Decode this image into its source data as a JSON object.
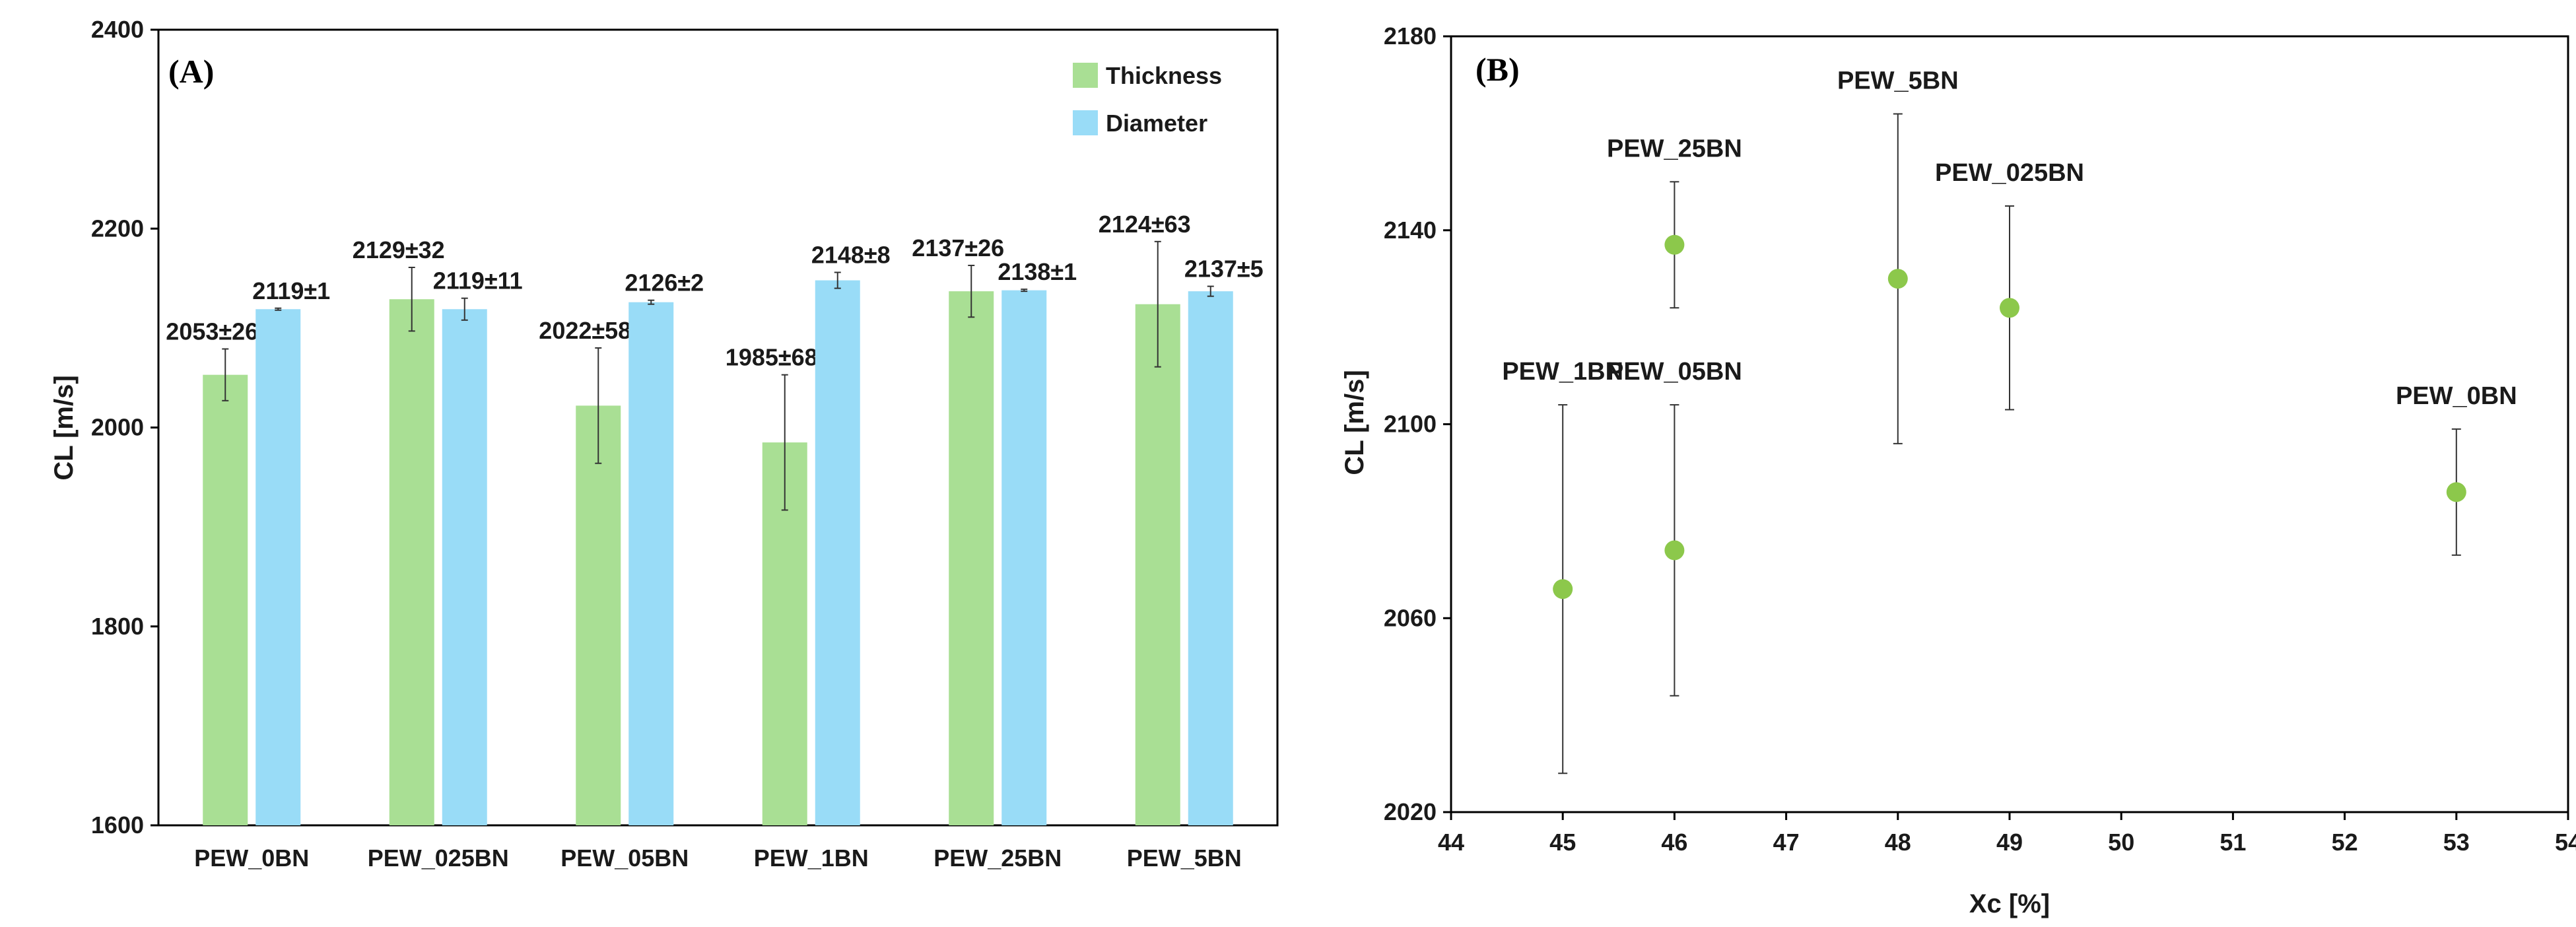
{
  "chart_data": [
    {
      "type": "bar",
      "panel_label": "(A)",
      "ylabel": "CL [m/s]",
      "xlabel": "",
      "ylim": [
        1600,
        2400
      ],
      "yticks": [
        1600,
        1800,
        2000,
        2200,
        2400
      ],
      "categories": [
        "PEW_0BN",
        "PEW_025BN",
        "PEW_05BN",
        "PEW_1BN",
        "PEW_25BN",
        "PEW_5BN"
      ],
      "legend_position": "top-right",
      "series": [
        {
          "name": "Thickness",
          "color": "#a9df94",
          "values": [
            2053,
            2129,
            2022,
            1985,
            2137,
            2124
          ],
          "errors": [
            26,
            32,
            58,
            68,
            26,
            63
          ],
          "labels": [
            "2053±26",
            "2129±32",
            "2022±58",
            "1985±68",
            "2137±26",
            "2124±63"
          ]
        },
        {
          "name": "Diameter",
          "color": "#99dcf7",
          "values": [
            2119,
            2119,
            2126,
            2148,
            2138,
            2137
          ],
          "errors": [
            1,
            11,
            2,
            8,
            1,
            5
          ],
          "labels": [
            "2119±1",
            "2119±11",
            "2126±2",
            "2148±8",
            "2138±1",
            "2137±5"
          ]
        }
      ]
    },
    {
      "type": "scatter",
      "panel_label": "(B)",
      "xlabel": "Xc [%]",
      "ylabel": "CL [m/s]",
      "xlim": [
        44,
        54
      ],
      "ylim": [
        2020,
        2180
      ],
      "xticks": [
        44,
        45,
        46,
        47,
        48,
        49,
        50,
        51,
        52,
        53,
        54
      ],
      "yticks": [
        2020,
        2060,
        2100,
        2140,
        2180
      ],
      "color": "#8cc84b",
      "points": [
        {
          "label": "PEW_1BN",
          "x": 45,
          "y": 2066,
          "err": 38
        },
        {
          "label": "PEW_25BN",
          "x": 46,
          "y": 2137,
          "err": 13
        },
        {
          "label": "PEW_05BN",
          "x": 46,
          "y": 2074,
          "err": 30
        },
        {
          "label": "PEW_5BN",
          "x": 48,
          "y": 2130,
          "err": 34
        },
        {
          "label": "PEW_025BN",
          "x": 49,
          "y": 2124,
          "err": 21
        },
        {
          "label": "PEW_0BN",
          "x": 53,
          "y": 2086,
          "err": 13
        }
      ]
    }
  ]
}
